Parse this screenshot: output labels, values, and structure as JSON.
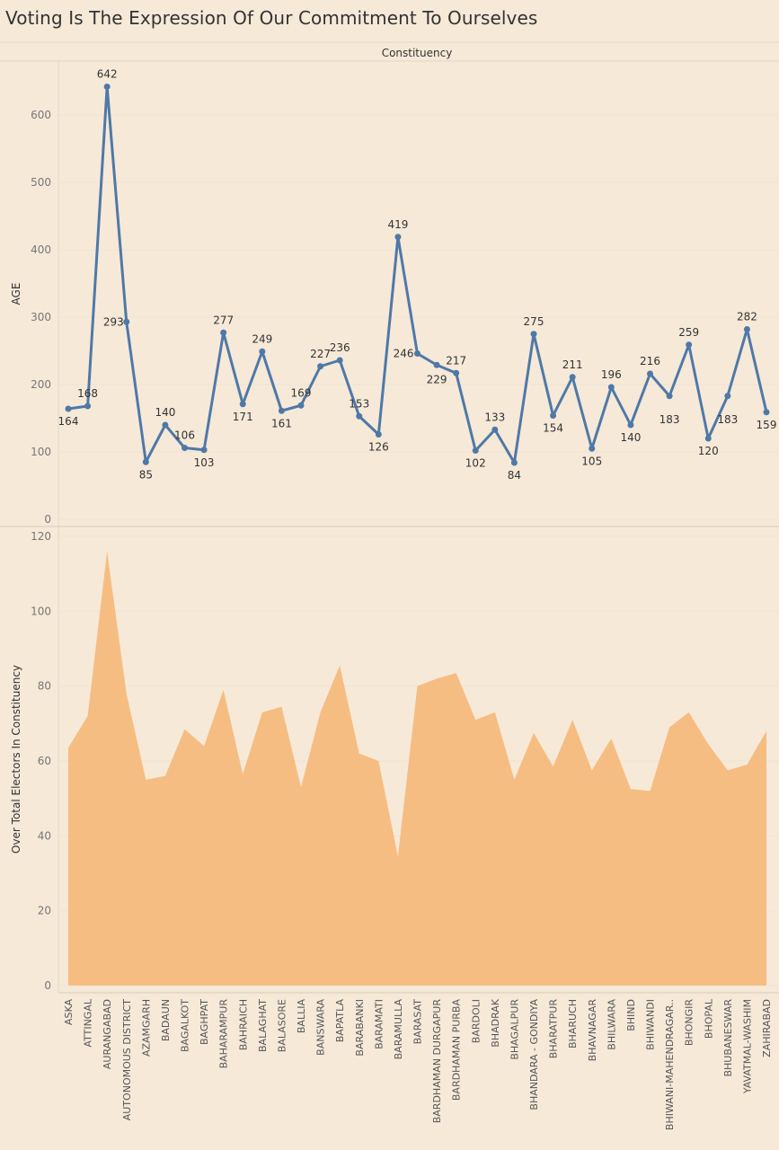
{
  "title": "Voting Is The Expression Of Our Commitment To Ourselves",
  "colors": {
    "background": "#f6e9d8",
    "line": "#4e79a7",
    "area": "#f6bd82"
  },
  "chart_data": [
    {
      "type": "line",
      "header": "Constituency",
      "ylabel": "AGE",
      "ylim": [
        0,
        650
      ],
      "yticks": [
        0,
        100,
        200,
        300,
        400,
        500,
        600
      ],
      "grid": true,
      "categories": [
        "ASKA",
        "ATTINGAL",
        "AURANGABAD",
        "AUTONOMOUS DISTRICT",
        "AZAMGARH",
        "BADAUN",
        "BAGALKOT",
        "BAGHPAT",
        "BAHARAMPUR",
        "BAHRAICH",
        "BALAGHAT",
        "BALASORE",
        "BALLIA",
        "BANSWARA",
        "BAPATLA",
        "BARABANKI",
        "BARAMATI",
        "BARAMULLA",
        "BARASAT",
        "BARDHAMAN DURGAPUR",
        "BARDHAMAN PURBA",
        "BARDOLI",
        "BHADRAK",
        "BHAGALPUR",
        "BHANDARA - GONDIYA",
        "BHARATPUR",
        "BHARUCH",
        "BHAVNAGAR",
        "BHILWARA",
        "BHIND",
        "BHIWANDI",
        "BHIWANI-MAHENDRAGAR..",
        "BHONGIR",
        "BHOPAL",
        "BHUBANESWAR",
        "YAVATMAL-WASHIM",
        "ZAHIRABAD"
      ],
      "values": [
        164,
        168,
        642,
        293,
        85,
        140,
        106,
        103,
        277,
        171,
        249,
        161,
        169,
        227,
        236,
        153,
        126,
        419,
        246,
        229,
        217,
        102,
        133,
        84,
        275,
        154,
        211,
        105,
        196,
        140,
        216,
        183,
        259,
        120,
        183,
        282,
        159
      ]
    },
    {
      "type": "area",
      "ylabel": "Over Total Electors  In Constituency",
      "ylim": [
        0,
        120
      ],
      "yticks": [
        0,
        20,
        40,
        60,
        80,
        100,
        120
      ],
      "grid": true,
      "categories": [
        "ASKA",
        "ATTINGAL",
        "AURANGABAD",
        "AUTONOMOUS DISTRICT",
        "AZAMGARH",
        "BADAUN",
        "BAGALKOT",
        "BAGHPAT",
        "BAHARAMPUR",
        "BAHRAICH",
        "BALAGHAT",
        "BALASORE",
        "BALLIA",
        "BANSWARA",
        "BAPATLA",
        "BARABANKI",
        "BARAMATI",
        "BARAMULLA",
        "BARASAT",
        "BARDHAMAN DURGAPUR",
        "BARDHAMAN PURBA",
        "BARDOLI",
        "BHADRAK",
        "BHAGALPUR",
        "BHANDARA - GONDIYA",
        "BHARATPUR",
        "BHARUCH",
        "BHAVNAGAR",
        "BHILWARA",
        "BHIND",
        "BHIWANDI",
        "BHIWANI-MAHENDRAGAR..",
        "BHONGIR",
        "BHOPAL",
        "BHUBANESWAR",
        "YAVATMAL-WASHIM",
        "ZAHIRABAD"
      ],
      "values": [
        63.5,
        72,
        116,
        78,
        55,
        56,
        68.5,
        64,
        79,
        56.5,
        73,
        74.5,
        53,
        73,
        85.5,
        62,
        60,
        34.5,
        80,
        82,
        83.5,
        71,
        73,
        55,
        67.5,
        58.5,
        71,
        57.5,
        66,
        52.5,
        52,
        69,
        73,
        64.5,
        57.5,
        59,
        68
      ]
    }
  ]
}
